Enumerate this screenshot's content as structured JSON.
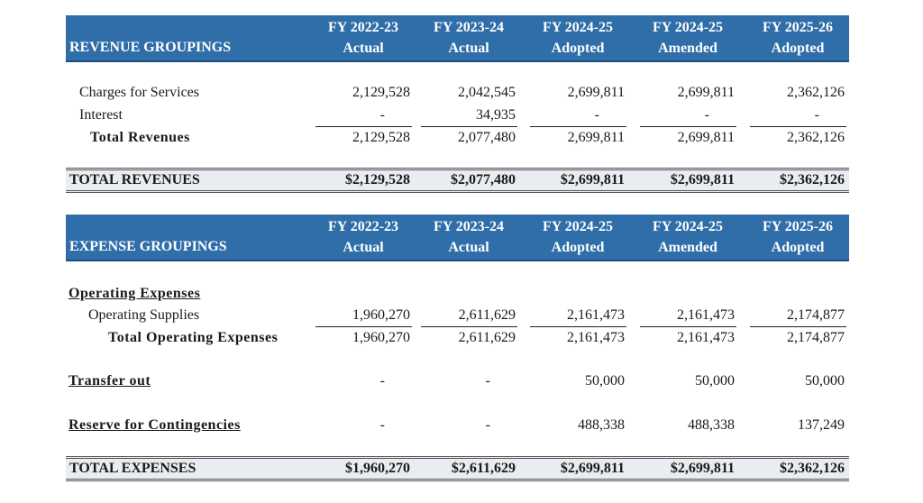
{
  "columns": [
    [
      "FY 2022-23",
      "Actual"
    ],
    [
      "FY 2023-24",
      "Actual"
    ],
    [
      "FY 2024-25",
      "Adopted"
    ],
    [
      "FY 2024-25",
      "Amended"
    ],
    [
      "FY 2025-26",
      "Adopted"
    ]
  ],
  "revenue": {
    "title": "REVENUE GROUPINGS",
    "rows": [
      {
        "label": "Charges for Services",
        "values": [
          "2,129,528",
          "2,042,545",
          "2,699,811",
          "2,699,811",
          "2,362,126"
        ],
        "style": "item"
      },
      {
        "label": "Interest",
        "values": [
          "-",
          "34,935",
          "-",
          "-",
          "-"
        ],
        "style": "item",
        "underline_after": true
      },
      {
        "label": "Total Revenues",
        "values": [
          "2,129,528",
          "2,077,480",
          "2,699,811",
          "2,699,811",
          "2,362,126"
        ],
        "style": "total"
      }
    ],
    "grand_total": {
      "label": "TOTAL REVENUES",
      "values": [
        "$2,129,528",
        "$2,077,480",
        "$2,699,811",
        "$2,699,811",
        "$2,362,126"
      ]
    }
  },
  "expense": {
    "title": "EXPENSE GROUPINGS",
    "rows": [
      {
        "label": "Operating Expenses",
        "values": [
          "",
          "",
          "",
          "",
          ""
        ],
        "style": "section"
      },
      {
        "label": "Operating Supplies",
        "values": [
          "1,960,270",
          "2,611,629",
          "2,161,473",
          "2,161,473",
          "2,174,877"
        ],
        "style": "item2",
        "underline_after": true
      },
      {
        "label": "Total Operating Expenses",
        "values": [
          "1,960,270",
          "2,611,629",
          "2,161,473",
          "2,161,473",
          "2,174,877"
        ],
        "style": "total2"
      },
      {
        "label": "Transfer out",
        "values": [
          "-",
          "-",
          "50,000",
          "50,000",
          "50,000"
        ],
        "style": "section"
      },
      {
        "label": "Reserve for Contingencies",
        "values": [
          "-",
          "-",
          "488,338",
          "488,338",
          "137,249"
        ],
        "style": "section"
      }
    ],
    "grand_total": {
      "label": "TOTAL EXPENSES",
      "values": [
        "$1,960,270",
        "$2,611,629",
        "$2,699,811",
        "$2,699,811",
        "$2,362,126"
      ]
    }
  }
}
